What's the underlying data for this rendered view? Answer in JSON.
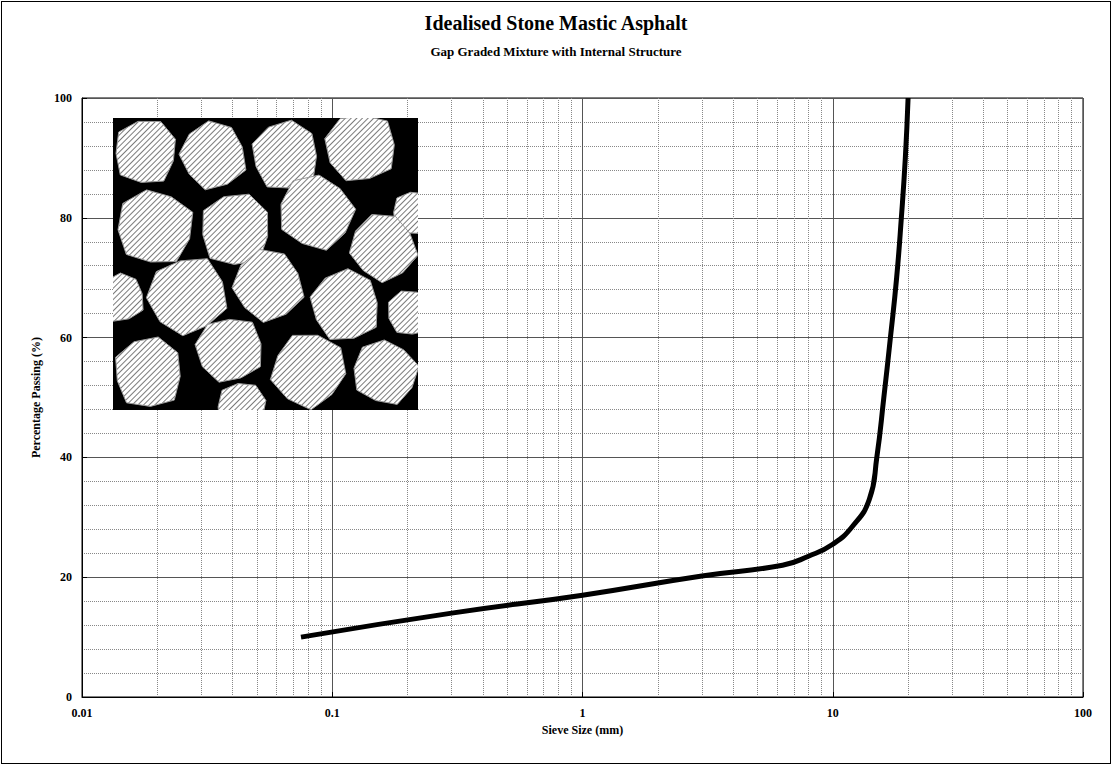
{
  "chart_data": {
    "type": "line",
    "title": "Idealised Stone Mastic Asphalt",
    "subtitle": "Gap Graded Mixture with Internal Structure",
    "x_label": "Sieve Size (mm)",
    "y_label": "Percentage Passing (%)",
    "x": [
      0.075,
      0.3,
      1,
      3,
      6.3,
      8,
      10,
      12,
      14,
      15,
      16,
      17,
      18,
      18.8,
      19.5,
      20
    ],
    "values": [
      10,
      14,
      17,
      20.2,
      22,
      23.5,
      25.5,
      28.5,
      33,
      40,
      50,
      60,
      70,
      80,
      90,
      100
    ],
    "color": "#000000",
    "xlim": [
      0.01,
      100
    ],
    "ylim": [
      0,
      100
    ],
    "xticks": [
      0.01,
      0.1,
      1,
      10,
      100
    ],
    "yticks": [
      0,
      20,
      40,
      60,
      80,
      100
    ],
    "log": "x",
    "grid": true
  }
}
